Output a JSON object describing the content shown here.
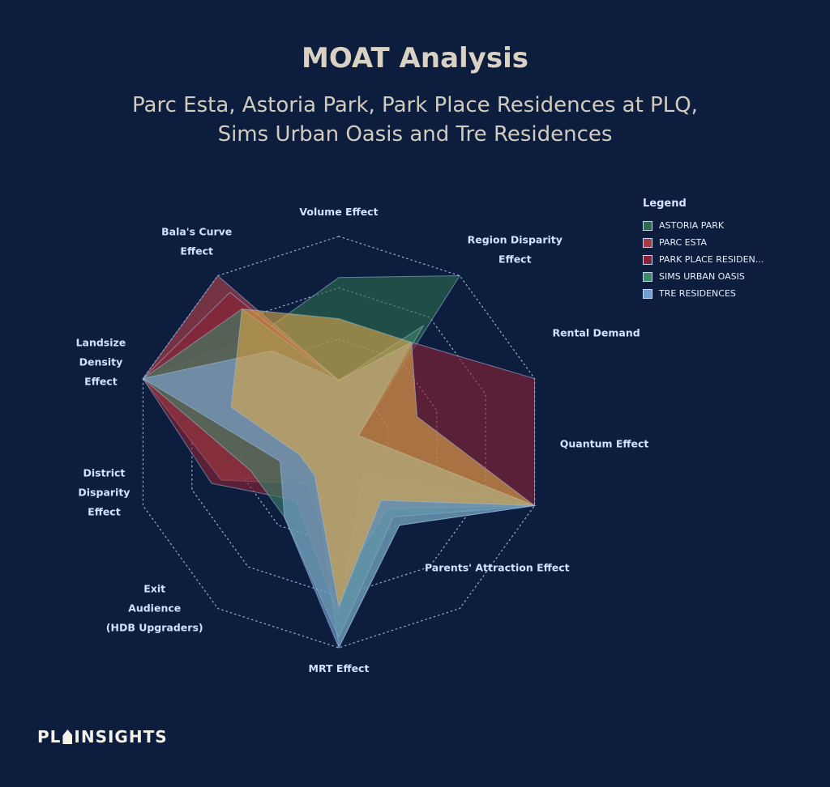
{
  "header": {
    "title": "MOAT Analysis",
    "subtitle_line1": "Parc Esta, Astoria Park, Park Place Residences at PLQ,",
    "subtitle_line2": "Sims Urban Oasis and Tre Residences"
  },
  "legend": {
    "title": "Legend",
    "items": [
      {
        "label": "ASTORIA PARK",
        "color": "#2d6b4f"
      },
      {
        "label": "PARC ESTA",
        "color": "#a33b45"
      },
      {
        "label": "PARK PLACE RESIDEN...",
        "color": "#8a2236"
      },
      {
        "label": "SIMS URBAN OASIS",
        "color": "#3f8a6a"
      },
      {
        "label": "TRE RESIDENCES",
        "color": "#6f9fd0"
      }
    ]
  },
  "footer": {
    "logo_left": "PL",
    "logo_right": "INSIGHTS"
  },
  "chart_data": {
    "type": "radar",
    "title": "MOAT Analysis",
    "axes": [
      [
        "Volume Effect"
      ],
      [
        "Region Disparity",
        "Effect"
      ],
      [
        "Rental Demand"
      ],
      [
        "Quantum Effect"
      ],
      [
        "Parents' Attraction Effect"
      ],
      [
        "MRT Effect"
      ],
      [
        "Exit",
        "Audience",
        "(HDB Upgraders)"
      ],
      [
        "District",
        "Disparity",
        "Effect"
      ],
      [
        "Landsize",
        "Density",
        "Effect"
      ],
      [
        "Bala's Curve",
        "Effect"
      ]
    ],
    "scale": [
      0,
      100
    ],
    "rings": 4,
    "series": [
      {
        "name": "ASTORIA PARK",
        "color": "#2d6b4f",
        "values": [
          80,
          100,
          10,
          100,
          50,
          100,
          20,
          60,
          100,
          65
        ]
      },
      {
        "name": "PARC ESTA",
        "color": "#b5404a",
        "values": [
          30,
          60,
          10,
          100,
          40,
          70,
          25,
          60,
          100,
          100
        ]
      },
      {
        "name": "PARK PLACE RESIDEN...",
        "color": "#8a2236",
        "values": [
          30,
          60,
          100,
          100,
          20,
          85,
          35,
          65,
          100,
          90
        ]
      },
      {
        "name": "SIMS URBAN OASIS",
        "color": "#3c8567",
        "values": [
          30,
          70,
          10,
          100,
          45,
          95,
          45,
          45,
          100,
          80
        ]
      },
      {
        "name": "TRE RESIDENCES",
        "color": "#7fa6d6",
        "values": [
          30,
          60,
          10,
          100,
          50,
          100,
          45,
          30,
          100,
          55
        ]
      },
      {
        "name": "",
        "color": "#d9a44a",
        "values": [
          60,
          60,
          40,
          100,
          35,
          80,
          20,
          20,
          55,
          80
        ]
      }
    ]
  }
}
